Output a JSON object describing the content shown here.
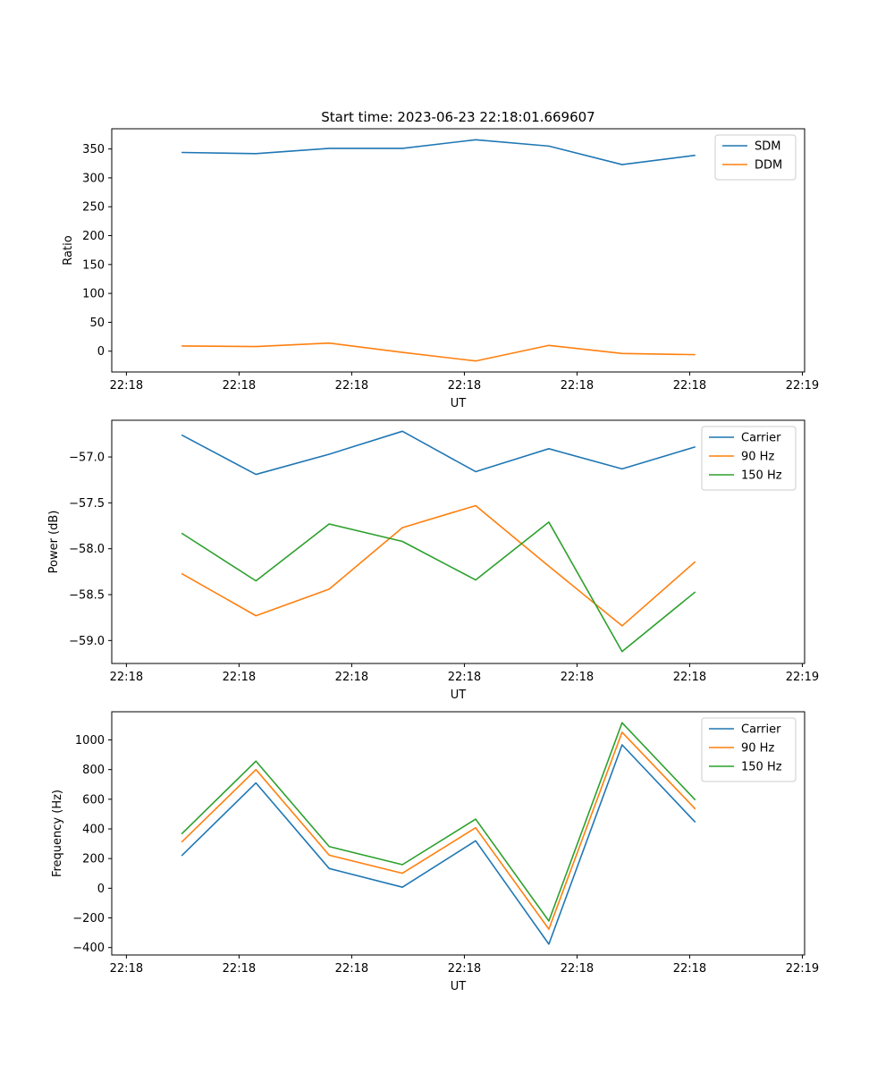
{
  "figure": {
    "title": "Start time: 2023-06-23 22:18:01.669607"
  },
  "chart_data": [
    {
      "type": "line",
      "title": "Start time: 2023-06-23 22:18:01.669607",
      "xlabel": "UT",
      "ylabel": "Ratio",
      "x_tick_labels": [
        "22:18",
        "22:18",
        "22:18",
        "22:18",
        "22:18",
        "22:18",
        "22:19"
      ],
      "x_tick_values": [
        0,
        1,
        2,
        3,
        4,
        5,
        6
      ],
      "x": [
        0.49,
        1.15,
        1.8,
        2.45,
        3.1,
        3.75,
        4.4,
        5.05
      ],
      "xlim": [
        -0.13,
        6.02
      ],
      "ylim": [
        -36,
        385
      ],
      "y_ticks": [
        0,
        50,
        100,
        150,
        200,
        250,
        300,
        350
      ],
      "legend": "top-right",
      "grid": false,
      "series": [
        {
          "name": "SDM",
          "color": "#1f77b4",
          "values": [
            344,
            342,
            351,
            351,
            366,
            355,
            323,
            339
          ]
        },
        {
          "name": "DDM",
          "color": "#ff7f0e",
          "values": [
            9,
            8,
            14,
            -2,
            -17,
            10,
            -4,
            -6
          ]
        }
      ]
    },
    {
      "type": "line",
      "title": "",
      "xlabel": "UT",
      "ylabel": "Power (dB)",
      "x_tick_labels": [
        "22:18",
        "22:18",
        "22:18",
        "22:18",
        "22:18",
        "22:18",
        "22:19"
      ],
      "x_tick_values": [
        0,
        1,
        2,
        3,
        4,
        5,
        6
      ],
      "x": [
        0.49,
        1.15,
        1.8,
        2.45,
        3.1,
        3.75,
        4.4,
        5.05
      ],
      "xlim": [
        -0.13,
        6.02
      ],
      "ylim": [
        -59.25,
        -56.6
      ],
      "y_ticks": [
        -59.0,
        -58.5,
        -58.0,
        -57.5,
        -57.0
      ],
      "y_tick_labels": [
        "−59.0",
        "−58.5",
        "−58.0",
        "−57.5",
        "−57.0"
      ],
      "legend": "top-right",
      "grid": false,
      "series": [
        {
          "name": "Carrier",
          "color": "#1f77b4",
          "values": [
            -56.76,
            -57.19,
            -56.97,
            -56.72,
            -57.16,
            -56.91,
            -57.13,
            -56.89
          ]
        },
        {
          "name": "90 Hz",
          "color": "#ff7f0e",
          "values": [
            -58.27,
            -58.73,
            -58.44,
            -57.77,
            -57.53,
            -58.19,
            -58.84,
            -58.14
          ]
        },
        {
          "name": "150 Hz",
          "color": "#2ca02c",
          "values": [
            -57.83,
            -58.35,
            -57.73,
            -57.92,
            -58.34,
            -57.71,
            -59.12,
            -58.47
          ]
        }
      ]
    },
    {
      "type": "line",
      "title": "",
      "xlabel": "UT",
      "ylabel": "Frequency (Hz)",
      "x_tick_labels": [
        "22:18",
        "22:18",
        "22:18",
        "22:18",
        "22:18",
        "22:18",
        "22:19"
      ],
      "x_tick_values": [
        0,
        1,
        2,
        3,
        4,
        5,
        6
      ],
      "x": [
        0.49,
        1.15,
        1.8,
        2.45,
        3.1,
        3.75,
        4.4,
        5.05
      ],
      "xlim": [
        -0.13,
        6.02
      ],
      "ylim": [
        -450,
        1190
      ],
      "y_ticks": [
        -400,
        -200,
        0,
        200,
        400,
        600,
        800,
        1000
      ],
      "y_tick_labels": [
        "−400",
        "−200",
        "0",
        "200",
        "400",
        "600",
        "800",
        "1000"
      ],
      "legend": "top-right",
      "grid": false,
      "series": [
        {
          "name": "Carrier",
          "color": "#1f77b4",
          "values": [
            219,
            710,
            133,
            7,
            320,
            -377,
            967,
            445
          ]
        },
        {
          "name": "90 Hz",
          "color": "#ff7f0e",
          "values": [
            311,
            800,
            223,
            101,
            408,
            -276,
            1052,
            534
          ]
        },
        {
          "name": "150 Hz",
          "color": "#2ca02c",
          "values": [
            366,
            857,
            281,
            159,
            466,
            -221,
            1116,
            595
          ]
        }
      ]
    }
  ]
}
